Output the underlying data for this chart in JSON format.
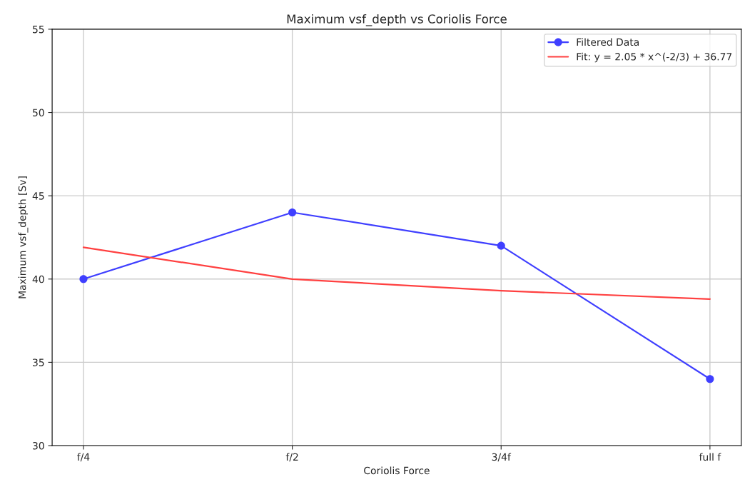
{
  "chart_data": {
    "type": "line",
    "title": "Maximum vsf_depth vs Coriolis Force",
    "xlabel": "Coriolis Force",
    "ylabel": "Maximum vsf_depth [Sv]",
    "categories": [
      "f/4",
      "f/2",
      "3/4f",
      "full f"
    ],
    "ylim": [
      30,
      55
    ],
    "yticks": [
      30,
      35,
      40,
      45,
      50,
      55
    ],
    "grid": true,
    "legend": "top right",
    "series": [
      {
        "name": "Filtered Data",
        "color": "#3f3fff",
        "marker": "circle",
        "values": [
          40,
          44,
          42,
          34
        ]
      },
      {
        "name": "Fit: y = 2.05 * x^(-2/3) + 36.77",
        "color": "#ff4040",
        "marker": "none",
        "values": [
          41.9,
          40.0,
          39.3,
          38.8
        ]
      }
    ]
  }
}
